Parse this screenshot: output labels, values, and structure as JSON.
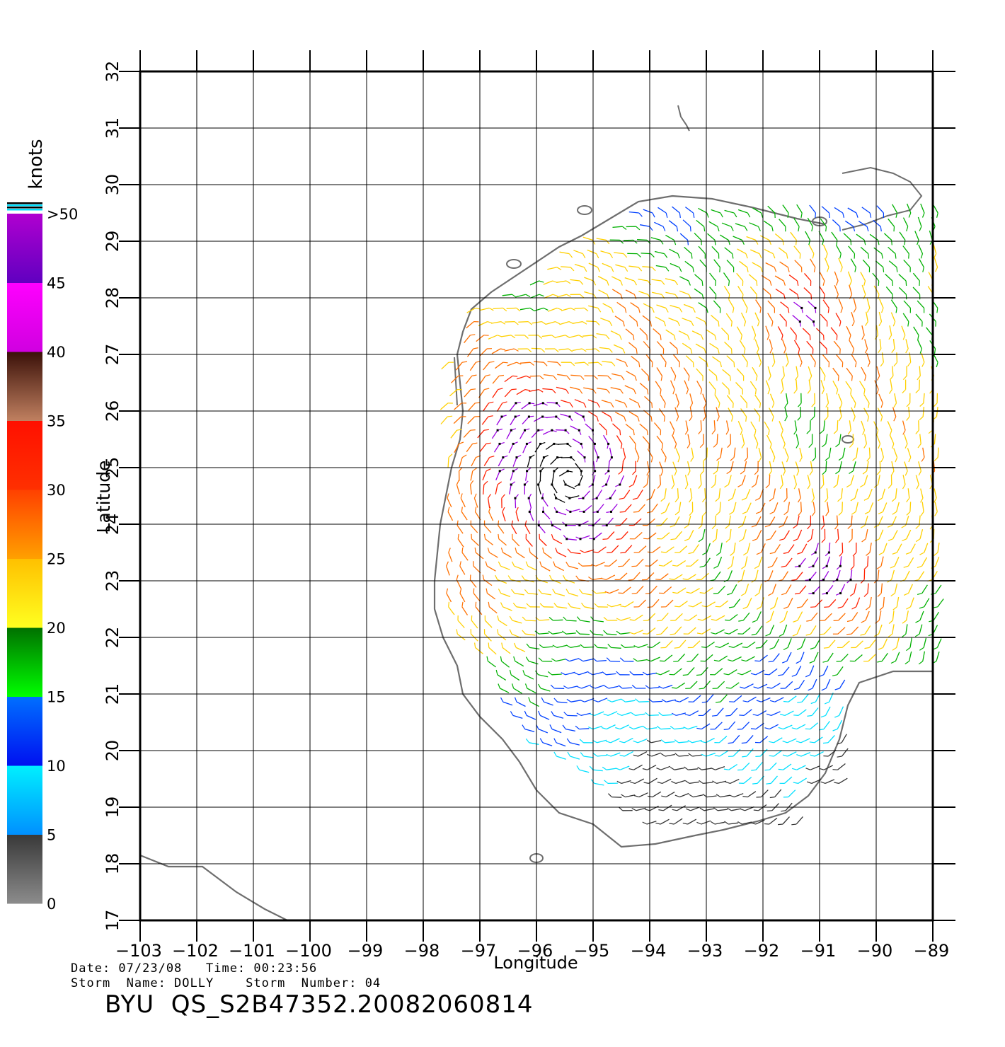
{
  "map": {
    "xlabel": "Longitude",
    "ylabel": "Latitude",
    "lon_range": [
      -103,
      -89
    ],
    "lat_range": [
      17,
      32
    ],
    "lon_ticks": [
      "−103",
      "−102",
      "−101",
      "−100",
      "−99",
      "−98",
      "−97",
      "−96",
      "−95",
      "−94",
      "−93",
      "−92",
      "−91",
      "−90",
      "−89"
    ],
    "lat_ticks": [
      "17",
      "18",
      "19",
      "20",
      "21",
      "22",
      "23",
      "24",
      "25",
      "26",
      "27",
      "28",
      "29",
      "30",
      "31",
      "32"
    ],
    "grid": true
  },
  "legend": {
    "unit": "knots",
    "labels": [
      "0",
      "5",
      "10",
      "15",
      "20",
      "25",
      "30",
      "35",
      "40",
      "45",
      ">50"
    ],
    "bands": [
      {
        "from": 0,
        "to": 5,
        "top": "#383838",
        "bottom": "#8c8c8c"
      },
      {
        "from": 5,
        "to": 10,
        "top": "#00f0ff",
        "bottom": "#0090ff"
      },
      {
        "from": 10,
        "to": 15,
        "top": "#0070ff",
        "bottom": "#0010f0"
      },
      {
        "from": 15,
        "to": 20,
        "top": "#007000",
        "bottom": "#00ff00"
      },
      {
        "from": 20,
        "to": 25,
        "top": "#ffc000",
        "bottom": "#ffff20"
      },
      {
        "from": 25,
        "to": 30,
        "top": "#ff4000",
        "bottom": "#ffa000"
      },
      {
        "from": 30,
        "to": 35,
        "top": "#ff1000",
        "bottom": "#ff3000"
      },
      {
        "from": 35,
        "to": 40,
        "top": "#3a1008",
        "bottom": "#c08060"
      },
      {
        "from": 40,
        "to": 45,
        "top": "#ff00ff",
        "bottom": "#d000e0"
      },
      {
        "from": 45,
        "to": 50,
        "top": "#b000d0",
        "bottom": "#6000c0"
      }
    ]
  },
  "colors": {
    "coast": "#6e6e6e",
    "calm": "#333333",
    "light": "#00e0ff",
    "moderate": "#0040ff",
    "fresh": "#00b000",
    "strong": "#ffd000",
    "near_gale": "#ff7000",
    "gale": "#ff2000",
    "storm": "#9a00e0",
    "hurricane": "#000000"
  },
  "footer": {
    "date_line": "Date: 07/23/08   Time: 00:23:56",
    "storm_line": "Storm  Name: DOLLY    Storm  Number: 04",
    "file_id": "BYU  QS_S2B47352.20082060814"
  }
}
